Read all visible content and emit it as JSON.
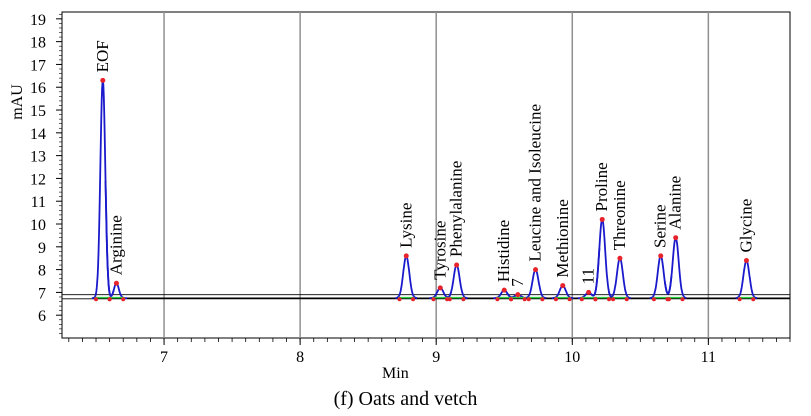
{
  "chart_data": {
    "type": "line",
    "caption": "(f) Oats and vetch",
    "xlabel": "Min",
    "ylabel": "mAU",
    "xlim": [
      6.25,
      11.6
    ],
    "ylim": [
      5.0,
      19.3
    ],
    "xticks": [
      7,
      8,
      9,
      10,
      11
    ],
    "yticks": [
      6,
      7,
      8,
      9,
      10,
      11,
      12,
      13,
      14,
      15,
      16,
      17,
      18,
      19
    ],
    "grid": true,
    "baseline": 6.75,
    "peaks": [
      {
        "label": "EOF",
        "x": 6.55,
        "y": 16.3
      },
      {
        "label": "Arginine",
        "x": 6.65,
        "y": 7.4
      },
      {
        "label": "Lysine",
        "x": 8.78,
        "y": 8.6
      },
      {
        "label": "Tyrosine",
        "x": 9.03,
        "y": 7.2
      },
      {
        "label": "Phenylalanine",
        "x": 9.15,
        "y": 8.2
      },
      {
        "label": "Histidine",
        "x": 9.5,
        "y": 7.1
      },
      {
        "label": "7",
        "x": 9.6,
        "y": 6.9
      },
      {
        "label": "Leucine and Isoleucine",
        "x": 9.73,
        "y": 8.0
      },
      {
        "label": "Methionine",
        "x": 9.93,
        "y": 7.3
      },
      {
        "label": "11",
        "x": 10.12,
        "y": 7.0
      },
      {
        "label": "Proline",
        "x": 10.22,
        "y": 10.2
      },
      {
        "label": "Threonine",
        "x": 10.35,
        "y": 8.5
      },
      {
        "label": "Serine",
        "x": 10.65,
        "y": 8.6
      },
      {
        "label": "Alanine",
        "x": 10.76,
        "y": 9.4
      },
      {
        "label": "Glycine",
        "x": 11.28,
        "y": 8.4
      }
    ]
  }
}
